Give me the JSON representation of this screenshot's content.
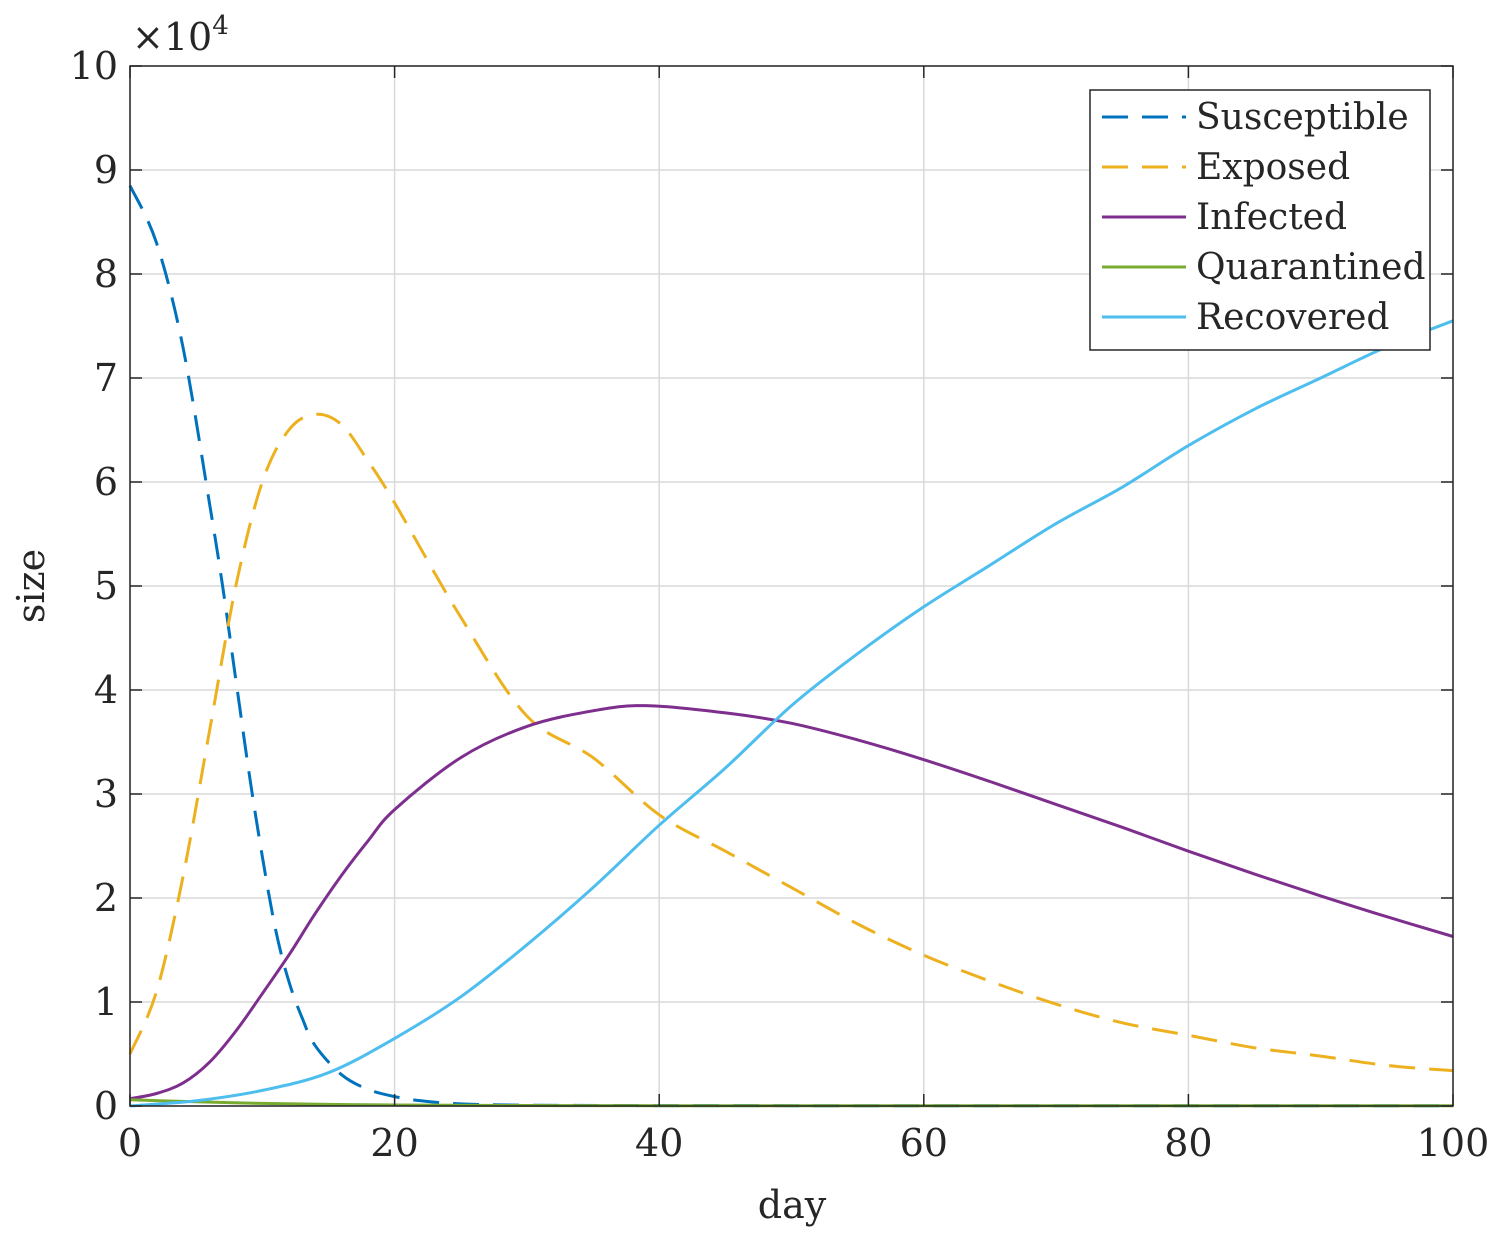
{
  "chart_data": {
    "type": "line",
    "xlabel": "day",
    "ylabel": "size",
    "y_exponent_label": "×10",
    "y_exponent_power": "4",
    "xlim": [
      0,
      100
    ],
    "ylim": [
      0,
      10
    ],
    "y_scale_note": "values in units of 10^4",
    "xticks": [
      "0",
      "20",
      "40",
      "60",
      "80",
      "100"
    ],
    "yticks": [
      "0",
      "1",
      "2",
      "3",
      "4",
      "5",
      "6",
      "7",
      "8",
      "9",
      "10"
    ],
    "grid": true,
    "legend_position": "top-right",
    "series": [
      {
        "name": "Susceptible",
        "color": "#0072BD",
        "style": "dashed",
        "points": [
          [
            0,
            8.85
          ],
          [
            2,
            8.3
          ],
          [
            4,
            7.3
          ],
          [
            6,
            5.8
          ],
          [
            7,
            5.0
          ],
          [
            8,
            4.1
          ],
          [
            9,
            3.2
          ],
          [
            10,
            2.4
          ],
          [
            11,
            1.7
          ],
          [
            12,
            1.2
          ],
          [
            13,
            0.85
          ],
          [
            14,
            0.58
          ],
          [
            16,
            0.3
          ],
          [
            18,
            0.16
          ],
          [
            20,
            0.09
          ],
          [
            22,
            0.05
          ],
          [
            25,
            0.02
          ],
          [
            30,
            0.008
          ],
          [
            40,
            0.004
          ],
          [
            60,
            0.003
          ],
          [
            80,
            0.003
          ],
          [
            100,
            0.003
          ]
        ]
      },
      {
        "name": "Exposed",
        "color": "#EDB120",
        "style": "dashed",
        "points": [
          [
            0,
            0.5
          ],
          [
            2,
            1.1
          ],
          [
            4,
            2.2
          ],
          [
            6,
            3.6
          ],
          [
            8,
            5.0
          ],
          [
            10,
            6.0
          ],
          [
            12,
            6.5
          ],
          [
            14,
            6.65
          ],
          [
            16,
            6.55
          ],
          [
            18,
            6.2
          ],
          [
            20,
            5.8
          ],
          [
            25,
            4.7
          ],
          [
            30,
            3.75
          ],
          [
            35,
            3.35
          ],
          [
            40,
            2.8
          ],
          [
            45,
            2.45
          ],
          [
            50,
            2.1
          ],
          [
            55,
            1.75
          ],
          [
            60,
            1.45
          ],
          [
            65,
            1.2
          ],
          [
            70,
            0.98
          ],
          [
            75,
            0.8
          ],
          [
            80,
            0.68
          ],
          [
            85,
            0.56
          ],
          [
            90,
            0.48
          ],
          [
            95,
            0.39
          ],
          [
            100,
            0.34
          ]
        ]
      },
      {
        "name": "Infected",
        "color": "#7E2F8E",
        "style": "solid",
        "points": [
          [
            0,
            0.07
          ],
          [
            2,
            0.12
          ],
          [
            4,
            0.22
          ],
          [
            6,
            0.42
          ],
          [
            8,
            0.72
          ],
          [
            10,
            1.08
          ],
          [
            12,
            1.45
          ],
          [
            14,
            1.85
          ],
          [
            16,
            2.22
          ],
          [
            18,
            2.55
          ],
          [
            20,
            2.85
          ],
          [
            25,
            3.35
          ],
          [
            30,
            3.65
          ],
          [
            35,
            3.8
          ],
          [
            39,
            3.85
          ],
          [
            45,
            3.78
          ],
          [
            50,
            3.68
          ],
          [
            55,
            3.52
          ],
          [
            60,
            3.33
          ],
          [
            65,
            3.12
          ],
          [
            70,
            2.9
          ],
          [
            75,
            2.68
          ],
          [
            80,
            2.45
          ],
          [
            85,
            2.23
          ],
          [
            90,
            2.02
          ],
          [
            95,
            1.82
          ],
          [
            100,
            1.63
          ]
        ]
      },
      {
        "name": "Quarantined",
        "color": "#77AC30",
        "style": "solid",
        "points": [
          [
            0,
            0.06
          ],
          [
            5,
            0.04
          ],
          [
            10,
            0.025
          ],
          [
            15,
            0.015
          ],
          [
            20,
            0.01
          ],
          [
            30,
            0.005
          ],
          [
            40,
            0.003
          ],
          [
            60,
            0.003
          ],
          [
            80,
            0.003
          ],
          [
            100,
            0.003
          ]
        ]
      },
      {
        "name": "Recovered",
        "color": "#4DBEEE",
        "style": "solid",
        "points": [
          [
            0,
            0.0
          ],
          [
            5,
            0.05
          ],
          [
            10,
            0.15
          ],
          [
            15,
            0.32
          ],
          [
            20,
            0.65
          ],
          [
            25,
            1.05
          ],
          [
            30,
            1.55
          ],
          [
            35,
            2.1
          ],
          [
            40,
            2.7
          ],
          [
            45,
            3.25
          ],
          [
            50,
            3.85
          ],
          [
            55,
            4.35
          ],
          [
            60,
            4.8
          ],
          [
            65,
            5.2
          ],
          [
            70,
            5.6
          ],
          [
            75,
            5.95
          ],
          [
            80,
            6.35
          ],
          [
            85,
            6.7
          ],
          [
            90,
            7.0
          ],
          [
            95,
            7.3
          ],
          [
            100,
            7.55
          ]
        ]
      }
    ]
  }
}
